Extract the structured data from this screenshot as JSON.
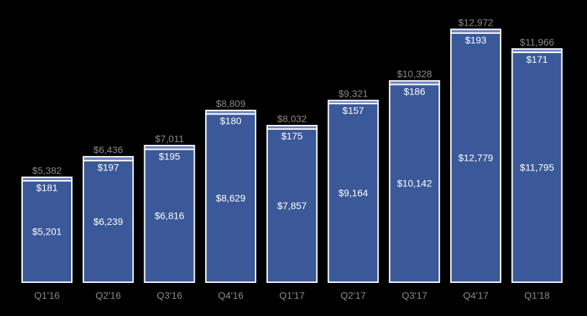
{
  "chart_data": {
    "type": "bar",
    "stacked": true,
    "categories": [
      "Q1'16",
      "Q2'16",
      "Q3'16",
      "Q4'16",
      "Q1'17",
      "Q2'17",
      "Q3'17",
      "Q4'17",
      "Q1'18"
    ],
    "series": [
      {
        "values": [
          5201,
          6239,
          6816,
          8629,
          7857,
          9164,
          10142,
          12779,
          11795
        ],
        "labels": [
          "$5,201",
          "$6,239",
          "$6,816",
          "$8,629",
          "$7,857",
          "$9,164",
          "$10,142",
          "$12,779",
          "$11,795"
        ],
        "color": "#3b5998"
      },
      {
        "values": [
          181,
          197,
          195,
          180,
          175,
          157,
          186,
          193,
          171
        ],
        "labels": [
          "$181",
          "$197",
          "$195",
          "$180",
          "$175",
          "$157",
          "$186",
          "$193",
          "$171"
        ],
        "color": "#6d84c4"
      }
    ],
    "totals": [
      5382,
      6436,
      7011,
      8809,
      8032,
      9321,
      10328,
      12972,
      11966
    ],
    "total_labels": [
      "$5,382",
      "$6,436",
      "$7,011",
      "$8,809",
      "$8,032",
      "$9,321",
      "$10,328",
      "$12,972",
      "$11,966"
    ],
    "ylim": [
      0,
      13450
    ],
    "grid": false,
    "legend": "none"
  }
}
